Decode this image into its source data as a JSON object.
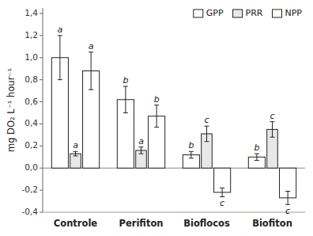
{
  "chart_data": {
    "type": "bar",
    "categories": [
      "Controle",
      "Perifiton",
      "Bioflocos",
      "Biofiton"
    ],
    "series": [
      {
        "name": "GPP",
        "color": "#ffffff",
        "values": [
          1.0,
          0.62,
          0.12,
          0.1
        ],
        "errors": [
          0.2,
          0.12,
          0.03,
          0.03
        ],
        "letters": [
          "a",
          "b",
          "b",
          "b"
        ]
      },
      {
        "name": "PRR",
        "color": "#e8e8e8",
        "values": [
          0.13,
          0.16,
          0.31,
          0.35
        ],
        "errors": [
          0.02,
          0.03,
          0.07,
          0.07
        ],
        "letters": [
          "a",
          "a",
          "c",
          "c"
        ]
      },
      {
        "name": "NPP",
        "color": "#ffffff",
        "values": [
          0.88,
          0.47,
          -0.22,
          -0.27
        ],
        "errors": [
          0.17,
          0.1,
          0.04,
          0.06
        ],
        "letters": [
          "a",
          "b",
          "c",
          "c"
        ]
      }
    ],
    "ylabel": "mg DO₂ L⁻¹ hour⁻¹",
    "ylim": [
      -0.4,
      1.45
    ],
    "yticks": [
      {
        "value": -0.4,
        "label": "-0,4"
      },
      {
        "value": -0.2,
        "label": "-0,2"
      },
      {
        "value": 0.0,
        "label": "0,0"
      },
      {
        "value": 0.2,
        "label": "0,2"
      },
      {
        "value": 0.4,
        "label": "0,4"
      },
      {
        "value": 0.6,
        "label": "0,6"
      },
      {
        "value": 0.8,
        "label": "0,8"
      },
      {
        "value": 1.0,
        "label": "1,0"
      },
      {
        "value": 1.2,
        "label": "1,2"
      },
      {
        "value": 1.4,
        "label": "1,4"
      }
    ],
    "legend": "upper right"
  }
}
